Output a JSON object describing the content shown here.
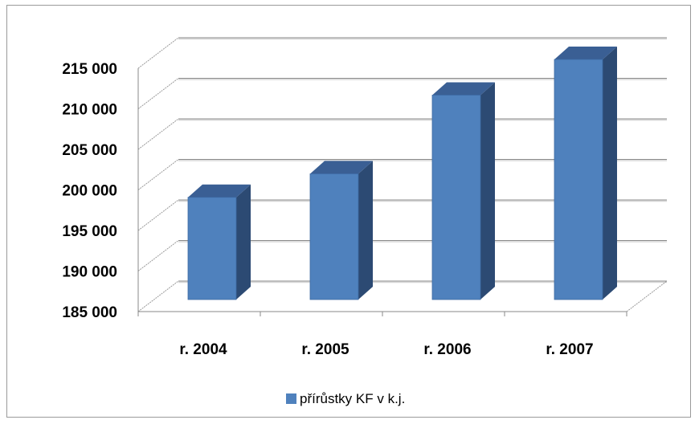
{
  "chart_data": {
    "type": "bar",
    "categories": [
      "r. 2004",
      "r. 2005",
      "r. 2006",
      "r. 2007"
    ],
    "series": [
      {
        "name": "přírůstky KF v k.j.",
        "values": [
          197800,
          200700,
          210400,
          214800
        ]
      }
    ],
    "y_ticks": [
      "185 000",
      "190 000",
      "195 000",
      "200 000",
      "205 000",
      "210 000",
      "215 000"
    ],
    "ylim": [
      185000,
      215000
    ],
    "grid": true,
    "legend_position": "bottom",
    "colors": {
      "front": "#4f81bd",
      "side": "#2c4a73",
      "top": "#3a5f94"
    }
  }
}
